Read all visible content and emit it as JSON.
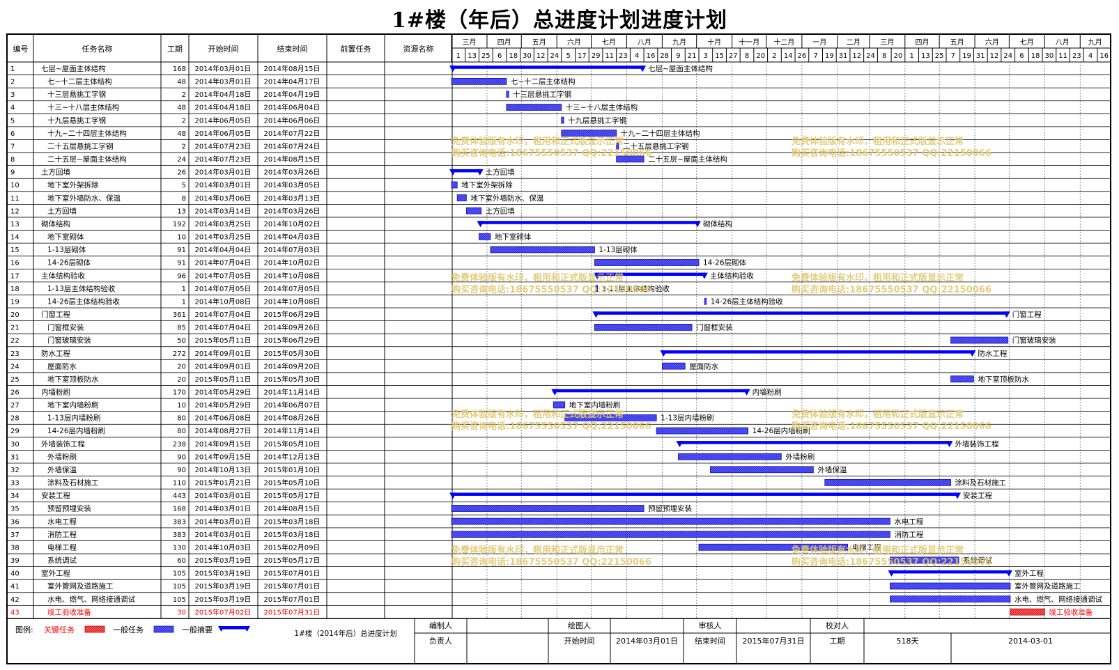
{
  "title": "1#楼（年后）总进度计划进度计划",
  "columns": [
    "编号",
    "任务名称",
    "工期",
    "开始时间",
    "结束时间",
    "前置任务",
    "资源名称"
  ],
  "months": [
    "三月",
    "四月",
    "五月",
    "六月",
    "七月",
    "八月",
    "九月",
    "十月",
    "十一月",
    "十二月",
    "一月",
    "二月",
    "三月",
    "四月",
    "五月",
    "六月",
    "七月",
    "八月",
    "九月"
  ],
  "days": [
    "1",
    "13",
    "25",
    "6",
    "18",
    "30",
    "12",
    "24",
    "5",
    "17",
    "29",
    "11",
    "23",
    "4",
    "16",
    "28",
    "9",
    "21",
    "3",
    "15",
    "27",
    "8",
    "20",
    "2",
    "14",
    "26",
    "7",
    "19",
    "31",
    "12",
    "24",
    "8",
    "20",
    "1",
    "13",
    "25",
    "7",
    "19",
    "31",
    "12",
    "24",
    "6",
    "18",
    "30",
    "11",
    "23",
    "4",
    "16"
  ],
  "tasks": [
    {
      "id": "1",
      "name": "七层~屋面主体结构",
      "indent": 0,
      "dur": "168",
      "start": "2014年03月01日",
      "end": "2014年08月15日",
      "type": "summary",
      "s": "2014-03-01",
      "e": "2014-08-15"
    },
    {
      "id": "2",
      "name": "七~十二层主体结构",
      "indent": 1,
      "dur": "48",
      "start": "2014年03月01日",
      "end": "2014年04月17日",
      "type": "normal",
      "s": "2014-03-01",
      "e": "2014-04-17"
    },
    {
      "id": "3",
      "name": "十三层悬挑工字钢",
      "indent": 1,
      "dur": "2",
      "start": "2014年04月18日",
      "end": "2014年04月19日",
      "type": "normal",
      "s": "2014-04-18",
      "e": "2014-04-19"
    },
    {
      "id": "4",
      "name": "十三~十八层主体结构",
      "indent": 1,
      "dur": "48",
      "start": "2014年04月18日",
      "end": "2014年06月04日",
      "type": "normal",
      "s": "2014-04-18",
      "e": "2014-06-04"
    },
    {
      "id": "5",
      "name": "十九层悬挑工字钢",
      "indent": 1,
      "dur": "2",
      "start": "2014年06月05日",
      "end": "2014年06月06日",
      "type": "normal",
      "s": "2014-06-05",
      "e": "2014-06-06"
    },
    {
      "id": "6",
      "name": "十九~二十四层主体结构",
      "indent": 1,
      "dur": "48",
      "start": "2014年06月05日",
      "end": "2014年07月22日",
      "type": "normal",
      "s": "2014-06-05",
      "e": "2014-07-22"
    },
    {
      "id": "7",
      "name": "二十五层悬挑工字钢",
      "indent": 1,
      "dur": "2",
      "start": "2014年07月23日",
      "end": "2014年07月24日",
      "type": "normal",
      "s": "2014-07-23",
      "e": "2014-07-24"
    },
    {
      "id": "8",
      "name": "二十五层~屋面主体结构",
      "indent": 1,
      "dur": "24",
      "start": "2014年07月23日",
      "end": "2014年08月15日",
      "type": "normal",
      "s": "2014-07-23",
      "e": "2014-08-15"
    },
    {
      "id": "9",
      "name": "土方回填",
      "indent": 0,
      "dur": "26",
      "start": "2014年03月01日",
      "end": "2014年03月26日",
      "type": "summary",
      "s": "2014-03-01",
      "e": "2014-03-26"
    },
    {
      "id": "10",
      "name": "地下室外架拆除",
      "indent": 1,
      "dur": "5",
      "start": "2014年03月01日",
      "end": "2014年03月05日",
      "type": "normal",
      "s": "2014-03-01",
      "e": "2014-03-05"
    },
    {
      "id": "11",
      "name": "地下室外墙防水、保温",
      "indent": 1,
      "dur": "8",
      "start": "2014年03月06日",
      "end": "2014年03月13日",
      "type": "normal",
      "s": "2014-03-06",
      "e": "2014-03-13"
    },
    {
      "id": "12",
      "name": "土方回填",
      "indent": 1,
      "dur": "13",
      "start": "2014年03月14日",
      "end": "2014年03月26日",
      "type": "normal",
      "s": "2014-03-14",
      "e": "2014-03-26"
    },
    {
      "id": "13",
      "name": "砌体结构",
      "indent": 0,
      "dur": "192",
      "start": "2014年03月25日",
      "end": "2014年10月02日",
      "type": "summary",
      "s": "2014-03-25",
      "e": "2014-10-02"
    },
    {
      "id": "14",
      "name": "地下室砌体",
      "indent": 1,
      "dur": "10",
      "start": "2014年03月25日",
      "end": "2014年04月03日",
      "type": "normal",
      "s": "2014-03-25",
      "e": "2014-04-03"
    },
    {
      "id": "15",
      "name": "1-13层砌体",
      "indent": 1,
      "dur": "91",
      "start": "2014年04月04日",
      "end": "2014年07月03日",
      "type": "normal",
      "s": "2014-04-04",
      "e": "2014-07-03"
    },
    {
      "id": "16",
      "name": "14-26层砌体",
      "indent": 1,
      "dur": "91",
      "start": "2014年07月04日",
      "end": "2014年10月02日",
      "type": "normal",
      "s": "2014-07-04",
      "e": "2014-10-02"
    },
    {
      "id": "17",
      "name": "主体结构验收",
      "indent": 0,
      "dur": "96",
      "start": "2014年07月05日",
      "end": "2014年10月08日",
      "type": "summary",
      "s": "2014-07-05",
      "e": "2014-10-08"
    },
    {
      "id": "18",
      "name": "1-13层主体结构验收",
      "indent": 1,
      "dur": "1",
      "start": "2014年07月05日",
      "end": "2014年07月05日",
      "type": "normal",
      "s": "2014-07-05",
      "e": "2014-07-05"
    },
    {
      "id": "19",
      "name": "14-26层主体结构验收",
      "indent": 1,
      "dur": "1",
      "start": "2014年10月08日",
      "end": "2014年10月08日",
      "type": "normal",
      "s": "2014-10-08",
      "e": "2014-10-08"
    },
    {
      "id": "20",
      "name": "门窗工程",
      "indent": 0,
      "dur": "361",
      "start": "2014年07月04日",
      "end": "2015年06月29日",
      "type": "summary",
      "s": "2014-07-04",
      "e": "2015-06-29"
    },
    {
      "id": "21",
      "name": "门窗框安装",
      "indent": 1,
      "dur": "85",
      "start": "2014年07月04日",
      "end": "2014年09月26日",
      "type": "normal",
      "s": "2014-07-04",
      "e": "2014-09-26"
    },
    {
      "id": "22",
      "name": "门窗玻璃安装",
      "indent": 1,
      "dur": "50",
      "start": "2015年05月11日",
      "end": "2015年06月29日",
      "type": "normal",
      "s": "2015-05-11",
      "e": "2015-06-29"
    },
    {
      "id": "23",
      "name": "防水工程",
      "indent": 0,
      "dur": "272",
      "start": "2014年09月01日",
      "end": "2015年05月30日",
      "type": "summary",
      "s": "2014-09-01",
      "e": "2015-05-30"
    },
    {
      "id": "24",
      "name": "屋面防水",
      "indent": 1,
      "dur": "20",
      "start": "2014年09月01日",
      "end": "2014年09月20日",
      "type": "normal",
      "s": "2014-09-01",
      "e": "2014-09-20"
    },
    {
      "id": "25",
      "name": "地下室顶板防水",
      "indent": 1,
      "dur": "20",
      "start": "2015年05月11日",
      "end": "2015年05月30日",
      "type": "normal",
      "s": "2015-05-11",
      "e": "2015-05-30"
    },
    {
      "id": "26",
      "name": "内墙粉刷",
      "indent": 0,
      "dur": "170",
      "start": "2014年05月29日",
      "end": "2014年11月14日",
      "type": "summary",
      "s": "2014-05-29",
      "e": "2014-11-14"
    },
    {
      "id": "27",
      "name": "地下室内墙粉刷",
      "indent": 1,
      "dur": "10",
      "start": "2014年05月29日",
      "end": "2014年06月07日",
      "type": "normal",
      "s": "2014-05-29",
      "e": "2014-06-07"
    },
    {
      "id": "28",
      "name": "1-13层内墙粉刷",
      "indent": 1,
      "dur": "80",
      "start": "2014年06月08日",
      "end": "2014年08月26日",
      "type": "normal",
      "s": "2014-06-08",
      "e": "2014-08-26"
    },
    {
      "id": "29",
      "name": "14-26层内墙粉刷",
      "indent": 1,
      "dur": "80",
      "start": "2014年08月27日",
      "end": "2014年11月14日",
      "type": "normal",
      "s": "2014-08-27",
      "e": "2014-11-14"
    },
    {
      "id": "30",
      "name": "外墙装饰工程",
      "indent": 0,
      "dur": "238",
      "start": "2014年09月15日",
      "end": "2015年05月10日",
      "type": "summary",
      "s": "2014-09-15",
      "e": "2015-05-10"
    },
    {
      "id": "31",
      "name": "外墙粉刷",
      "indent": 1,
      "dur": "90",
      "start": "2014年09月15日",
      "end": "2014年12月13日",
      "type": "normal",
      "s": "2014-09-15",
      "e": "2014-12-13"
    },
    {
      "id": "32",
      "name": "外墙保温",
      "indent": 1,
      "dur": "90",
      "start": "2014年10月13日",
      "end": "2015年01月10日",
      "type": "normal",
      "s": "2014-10-13",
      "e": "2015-01-10"
    },
    {
      "id": "33",
      "name": "涂料及石材施工",
      "indent": 1,
      "dur": "110",
      "start": "2015年01月21日",
      "end": "2015年05月10日",
      "type": "normal",
      "s": "2015-01-21",
      "e": "2015-05-10"
    },
    {
      "id": "34",
      "name": "安装工程",
      "indent": 0,
      "dur": "443",
      "start": "2014年03月01日",
      "end": "2015年05月17日",
      "type": "summary",
      "s": "2014-03-01",
      "e": "2015-05-17"
    },
    {
      "id": "35",
      "name": "预留预埋安装",
      "indent": 1,
      "dur": "168",
      "start": "2014年03月01日",
      "end": "2014年08月15日",
      "type": "normal",
      "s": "2014-03-01",
      "e": "2014-08-15"
    },
    {
      "id": "36",
      "name": "水电工程",
      "indent": 1,
      "dur": "383",
      "start": "2014年03月01日",
      "end": "2015年03月18日",
      "type": "normal",
      "s": "2014-03-01",
      "e": "2015-03-18"
    },
    {
      "id": "37",
      "name": "消防工程",
      "indent": 1,
      "dur": "383",
      "start": "2014年03月01日",
      "end": "2015年03月18日",
      "type": "normal",
      "s": "2014-03-01",
      "e": "2015-03-18"
    },
    {
      "id": "38",
      "name": "电梯工程",
      "indent": 1,
      "dur": "130",
      "start": "2014年10月03日",
      "end": "2015年02月09日",
      "type": "normal",
      "s": "2014-10-03",
      "e": "2015-02-09"
    },
    {
      "id": "39",
      "name": "系统调试",
      "indent": 1,
      "dur": "60",
      "start": "2015年03月19日",
      "end": "2015年05月17日",
      "type": "normal",
      "s": "2015-03-19",
      "e": "2015-05-17"
    },
    {
      "id": "40",
      "name": "室外工程",
      "indent": 0,
      "dur": "105",
      "start": "2015年03月19日",
      "end": "2015年07月01日",
      "type": "summary",
      "s": "2015-03-19",
      "e": "2015-07-01"
    },
    {
      "id": "41",
      "name": "室外管网及道路施工",
      "indent": 1,
      "dur": "105",
      "start": "2015年03月19日",
      "end": "2015年07月01日",
      "type": "normal",
      "s": "2015-03-19",
      "e": "2015-07-01"
    },
    {
      "id": "42",
      "name": "水电、燃气、网络接通调试",
      "indent": 1,
      "dur": "105",
      "start": "2015年03月19日",
      "end": "2015年07月01日",
      "type": "normal",
      "s": "2015-03-19",
      "e": "2015-07-01"
    },
    {
      "id": "43",
      "name": "竣工验收准备",
      "indent": 1,
      "dur": "30",
      "start": "2015年07月02日",
      "end": "2015年07月31日",
      "type": "critical",
      "s": "2015-07-02",
      "e": "2015-07-31"
    }
  ],
  "legend": {
    "label": "图例:",
    "critical": "关键任务",
    "normal": "一般任务",
    "summary": "一般摘要"
  },
  "footer": {
    "plan_name": "1#楼（2014年后）总进度计划",
    "r1": [
      "编制人",
      "",
      "绘图人",
      "",
      "审核人",
      "",
      "校对人",
      ""
    ],
    "r2": [
      "负责人",
      "",
      "开始时间",
      "2014年03月01日",
      "结束时间",
      "2015年07月31日",
      "工期",
      "518天",
      "2014-03-01"
    ]
  },
  "watermark": [
    "免费体验版有水印，租用和正式版显示正常",
    "购买咨询电话:18675550537 QQ:22150066"
  ],
  "colors": {
    "bar": "#0000ff",
    "critical": "#ff0000",
    "grid": "#000000"
  }
}
